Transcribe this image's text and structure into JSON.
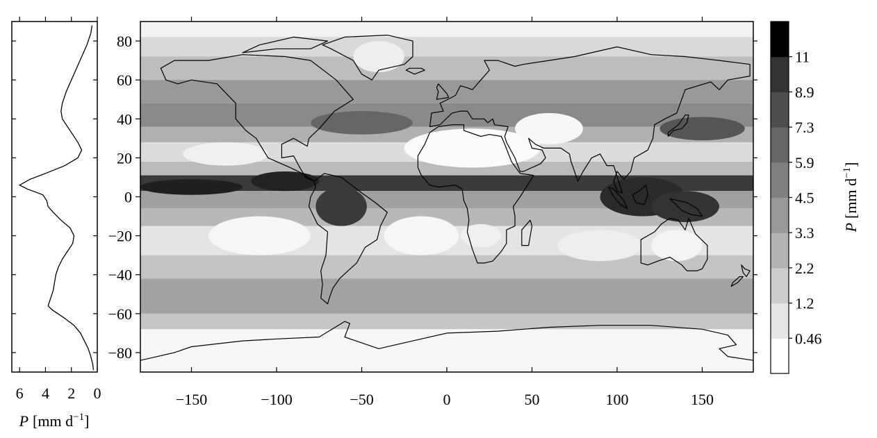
{
  "chart_data": [
    {
      "type": "line",
      "panel": "zonal-mean-profile",
      "xlabel_symbol": "P",
      "xlabel_units": "[mm d",
      "xlabel_exponent": "−1",
      "xlabel_close": "]",
      "xlim": [
        6.6,
        0
      ],
      "ylim": [
        -90,
        90
      ],
      "x_ticks": [
        6,
        4,
        2,
        0
      ],
      "series": [
        {
          "points": [
            {
              "lat": 88,
              "p": 0.4
            },
            {
              "lat": 84,
              "p": 0.5
            },
            {
              "lat": 78,
              "p": 0.8
            },
            {
              "lat": 72,
              "p": 1.2
            },
            {
              "lat": 66,
              "p": 1.6
            },
            {
              "lat": 60,
              "p": 2.0
            },
            {
              "lat": 54,
              "p": 2.4
            },
            {
              "lat": 48,
              "p": 2.7
            },
            {
              "lat": 44,
              "p": 2.8
            },
            {
              "lat": 40,
              "p": 2.7
            },
            {
              "lat": 36,
              "p": 2.3
            },
            {
              "lat": 32,
              "p": 1.9
            },
            {
              "lat": 28,
              "p": 1.5
            },
            {
              "lat": 24,
              "p": 1.2
            },
            {
              "lat": 20,
              "p": 1.5
            },
            {
              "lat": 16,
              "p": 2.5
            },
            {
              "lat": 12,
              "p": 4.0
            },
            {
              "lat": 9,
              "p": 5.2
            },
            {
              "lat": 6,
              "p": 6.0
            },
            {
              "lat": 4,
              "p": 5.4
            },
            {
              "lat": 1,
              "p": 4.2
            },
            {
              "lat": -2,
              "p": 3.9
            },
            {
              "lat": -5,
              "p": 3.8
            },
            {
              "lat": -8,
              "p": 3.4
            },
            {
              "lat": -12,
              "p": 2.8
            },
            {
              "lat": -16,
              "p": 2.1
            },
            {
              "lat": -20,
              "p": 1.8
            },
            {
              "lat": -24,
              "p": 1.9
            },
            {
              "lat": -28,
              "p": 2.3
            },
            {
              "lat": -32,
              "p": 2.7
            },
            {
              "lat": -36,
              "p": 3.0
            },
            {
              "lat": -40,
              "p": 3.2
            },
            {
              "lat": -44,
              "p": 3.3
            },
            {
              "lat": -48,
              "p": 3.4
            },
            {
              "lat": -52,
              "p": 3.6
            },
            {
              "lat": -56,
              "p": 3.8
            },
            {
              "lat": -58,
              "p": 3.5
            },
            {
              "lat": -62,
              "p": 2.6
            },
            {
              "lat": -66,
              "p": 1.8
            },
            {
              "lat": -70,
              "p": 1.3
            },
            {
              "lat": -74,
              "p": 1.0
            },
            {
              "lat": -78,
              "p": 0.7
            },
            {
              "lat": -82,
              "p": 0.5
            },
            {
              "lat": -86,
              "p": 0.35
            },
            {
              "lat": -89,
              "p": 0.3
            }
          ]
        }
      ]
    },
    {
      "type": "heatmap",
      "panel": "precipitation-map",
      "xlim": [
        -180,
        180
      ],
      "ylim": [
        -90,
        90
      ],
      "x_ticks": [
        -150,
        -100,
        -50,
        0,
        50,
        100,
        150
      ],
      "y_ticks": [
        80,
        60,
        40,
        20,
        0,
        -20,
        -40,
        -60,
        -80
      ],
      "x_tick_labels": [
        "−150",
        "−100",
        "−50",
        "0",
        "50",
        "100",
        "150"
      ],
      "y_tick_labels": [
        "80",
        "60",
        "40",
        "20",
        "0",
        "−20",
        "−40",
        "−60",
        "−80"
      ],
      "colorbar": {
        "label_symbol": "P",
        "label_units": "[mm d",
        "label_exponent": "−1",
        "label_close": "]",
        "levels": [
          "0.46",
          "1.2",
          "2.2",
          "3.3",
          "4.5",
          "5.9",
          "7.3",
          "8.9",
          "11"
        ],
        "level_values": [
          0.46,
          1.2,
          2.2,
          3.3,
          4.5,
          5.9,
          7.3,
          8.9,
          11
        ],
        "colors": [
          "#ffffff",
          "#e6e6e6",
          "#cccccc",
          "#b3b3b3",
          "#999999",
          "#808080",
          "#666666",
          "#4d4d4d",
          "#333333",
          "#000000"
        ]
      },
      "notes": "Grayscale map of mean precipitation with coastlines; dark bands along ITCZ (~5N), storm tracks (~40-50N/S), maritime continent; light over subtropical deserts and eastern subtropical oceans."
    }
  ]
}
